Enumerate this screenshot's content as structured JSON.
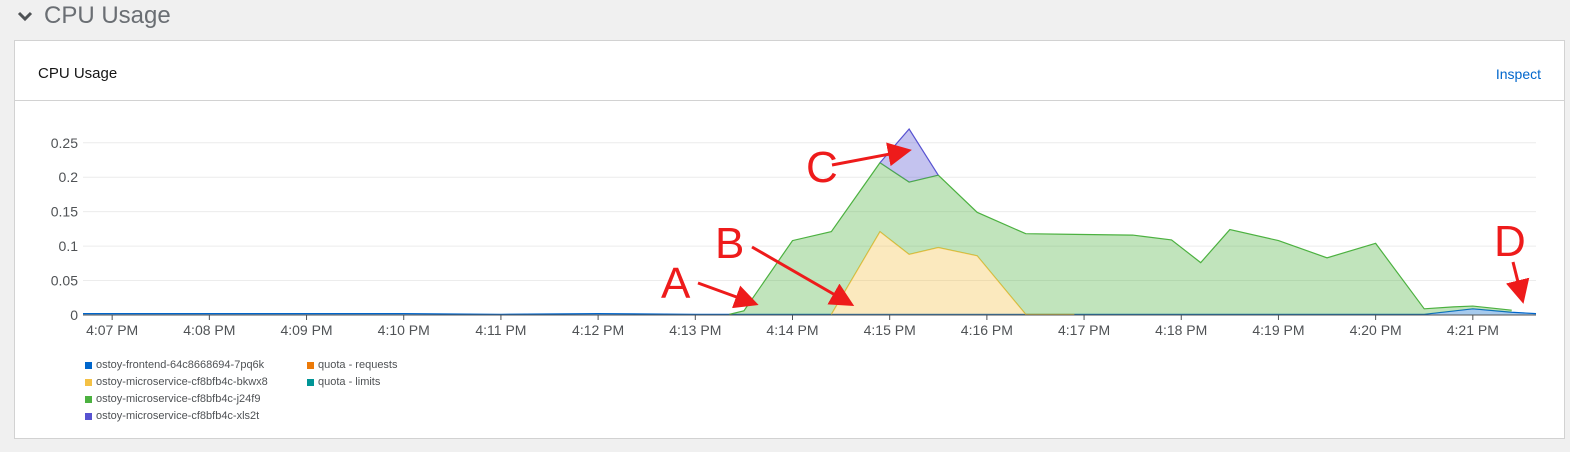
{
  "section": {
    "title": "CPU Usage",
    "icon": "chevron-down-icon"
  },
  "card": {
    "title": "CPU Usage",
    "inspect_label": "Inspect"
  },
  "colors": {
    "frontend": "#0066cc",
    "bkwx8": "#f4c145",
    "j24f9": "#4cb140",
    "xls2t": "#5752d1",
    "requests": "#ec7a08",
    "limits": "#009596",
    "accent_link": "#0066cc",
    "annotation": "#ee1b1b"
  },
  "legend": [
    {
      "label": "ostoy-frontend-64c8668694-7pq6k",
      "color": "#0066cc"
    },
    {
      "label": "ostoy-microservice-cf8bfb4c-bkwx8",
      "color": "#f4c145"
    },
    {
      "label": "ostoy-microservice-cf8bfb4c-j24f9",
      "color": "#4cb140"
    },
    {
      "label": "ostoy-microservice-cf8bfb4c-xls2t",
      "color": "#5752d1"
    },
    {
      "label": "quota - requests",
      "color": "#ec7a08"
    },
    {
      "label": "quota - limits",
      "color": "#009596"
    }
  ],
  "annotations": [
    "A",
    "B",
    "C",
    "D"
  ],
  "chart_data": {
    "type": "area",
    "title": "CPU Usage",
    "xlabel": "",
    "ylabel": "",
    "xlim": [
      -0.3,
      14.65
    ],
    "ylim": [
      0,
      0.27
    ],
    "y_ticks": [
      0,
      0.05,
      0.1,
      0.15,
      0.2,
      0.25
    ],
    "y_tick_labels": [
      "0",
      "0.05",
      "0.1",
      "0.15",
      "0.2",
      "0.25"
    ],
    "x_ticks": [
      0,
      1,
      2,
      3,
      4,
      5,
      6,
      7,
      8,
      9,
      10,
      11,
      12,
      13,
      14
    ],
    "x_tick_labels": [
      "4:07 PM",
      "4:08 PM",
      "4:09 PM",
      "4:10 PM",
      "4:11 PM",
      "4:12 PM",
      "4:13 PM",
      "4:14 PM",
      "4:15 PM",
      "4:16 PM",
      "4:17 PM",
      "4:18 PM",
      "4:19 PM",
      "4:20 PM",
      "4:21 PM"
    ],
    "stacked": true,
    "series": [
      {
        "name": "ostoy-frontend-64c8668694-7pq6k",
        "color": "#0066cc",
        "x": [
          -0.3,
          0,
          1,
          2,
          3,
          4,
          5,
          6,
          6.5,
          7,
          8,
          9,
          10,
          11,
          12,
          13,
          13.5,
          14,
          14.4,
          14.65
        ],
        "values": [
          0.002,
          0.002,
          0.002,
          0.002,
          0.002,
          0.001,
          0.002,
          0.001,
          0.001,
          0.001,
          0.001,
          0.001,
          0.001,
          0.001,
          0.001,
          0.001,
          0.001,
          0.009,
          0.004,
          0.002
        ]
      },
      {
        "name": "ostoy-microservice-cf8bfb4c-bkwx8",
        "color": "#f4c145",
        "x": [
          7.4,
          7.9,
          8.2,
          8.5,
          8.9,
          9.4,
          9.9
        ],
        "values": [
          0,
          0.12,
          0.087,
          0.097,
          0.085,
          0,
          0
        ]
      },
      {
        "name": "ostoy-microservice-cf8bfb4c-j24f9",
        "color": "#4cb140",
        "x": [
          6.35,
          6.5,
          7.0,
          7.4,
          7.9,
          8.2,
          8.5,
          8.9,
          9.4,
          9.9,
          10.5,
          10.9,
          11.2,
          11.5,
          12.0,
          12.5,
          13.0,
          13.5,
          13.8,
          14.0,
          14.4
        ],
        "values": [
          0,
          0.005,
          0.107,
          0.12,
          0.1,
          0.105,
          0.105,
          0.063,
          0.117,
          0.116,
          0.115,
          0.108,
          0.075,
          0.123,
          0.107,
          0.082,
          0.103,
          0.008,
          0.006,
          0.004,
          0.003
        ]
      },
      {
        "name": "ostoy-microservice-cf8bfb4c-xls2t",
        "color": "#5752d1",
        "x": [
          7.9,
          8.2,
          8.5
        ],
        "values": [
          0,
          0.077,
          0
        ]
      },
      {
        "name": "quota - requests",
        "color": "#ec7a08",
        "x": [],
        "values": []
      },
      {
        "name": "quota - limits",
        "color": "#009596",
        "x": [],
        "values": []
      }
    ]
  }
}
